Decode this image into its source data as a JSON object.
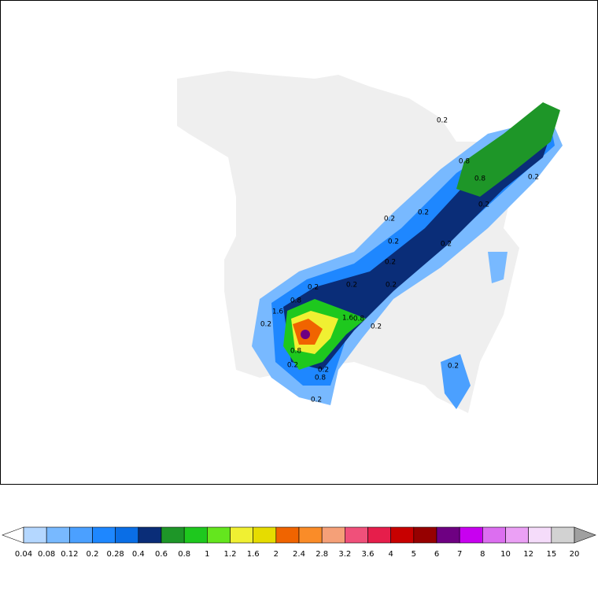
{
  "colorbar": {
    "ticks": [
      0.04,
      0.08,
      0.12,
      0.2,
      0.28,
      0.4,
      0.6,
      0.8,
      1,
      1.2,
      1.6,
      2,
      2.4,
      2.8,
      3.2,
      3.6,
      4,
      5,
      6,
      7,
      8,
      10,
      12,
      15,
      20
    ],
    "colors": [
      "#ffffff",
      "#b4d7ff",
      "#78b9ff",
      "#4ba0ff",
      "#1e87ff",
      "#0a6ee6",
      "#0a2d78",
      "#1e9628",
      "#1ec81e",
      "#64e61e",
      "#f0f032",
      "#e6dc00",
      "#f06400",
      "#fa8c28",
      "#f5a078",
      "#f0507a",
      "#e61e4b",
      "#c80000",
      "#960000",
      "#6e0082",
      "#c800f0",
      "#dc6ef0",
      "#eba0f5",
      "#f5dcfa",
      "#d2d2d2",
      "#a0a0a0"
    ]
  },
  "contour_labels": [
    0.2,
    0.8,
    0.8,
    0.2,
    0.2,
    0.2,
    0.2,
    0.2,
    0.2,
    0.2,
    0.2,
    0.2,
    0.2,
    0.8,
    1.6,
    0.2,
    1.6,
    0.8,
    0.2,
    0.8,
    0.2,
    0.2,
    0.8,
    0.2,
    0.2
  ]
}
